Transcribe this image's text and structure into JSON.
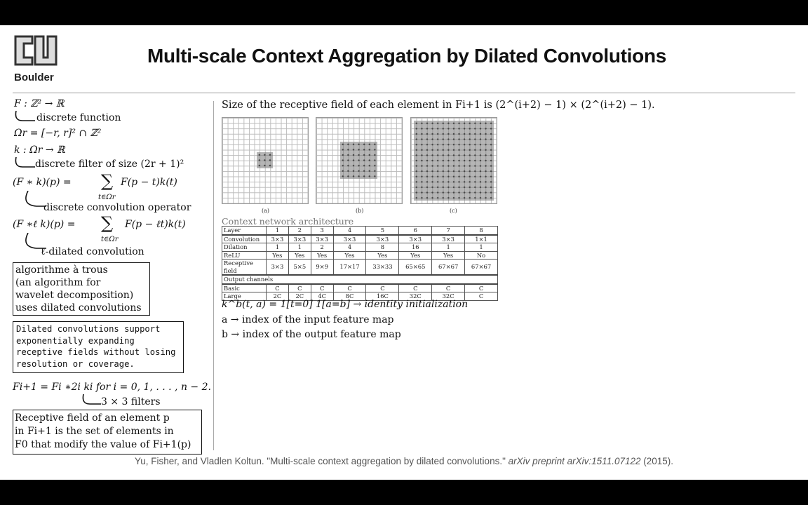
{
  "logo": {
    "institution": "Boulder"
  },
  "title": "Multi-scale Context Aggregation by Dilated Convolutions",
  "left": {
    "f_def": "F : ℤ² → ℝ",
    "f_note": "discrete function",
    "omega_def": "Ωr = [−r, r]² ∩ ℤ²",
    "k_def": "k : Ωr → ℝ",
    "k_note": "discrete filter of size (2r + 1)²",
    "conv_lhs": "(F ∗ k)(p) =",
    "conv_sum": "∑",
    "conv_sub": "t∈Ωr",
    "conv_rhs": "F(p − t)k(t)",
    "conv_note": "discrete convolution operator",
    "dconv_lhs": "(F ∗ℓ k)(p) =",
    "dconv_sum": "∑",
    "dconv_sub": "t∈Ωr",
    "dconv_rhs": "F(p − ℓt)k(t)",
    "dconv_note": "ℓ-dilated convolution",
    "atrous": [
      "algorithme à trous",
      "(an algorithm for",
      "wavelet decomposition)",
      "uses dilated convolutions"
    ],
    "support": [
      "Dilated convolutions support",
      "exponentially expanding",
      "receptive fields without losing",
      "resolution or coverage."
    ],
    "recur": "Fi+1 = Fi ∗2i ki   for i = 0, 1, . . . , n − 2.",
    "recur_note": "3 × 3 filters",
    "receptive": [
      "Receptive field of an element p",
      "in Fi+1 is the set of elements in",
      "F0 that modify the value of Fi+1(p)"
    ]
  },
  "right": {
    "size_line": "Size of the receptive field of each element in Fi+1 is (2^(i+2) − 1) × (2^(i+2) − 1).",
    "fig_captions": [
      "(a)",
      "(b)",
      "(c)"
    ],
    "ctx_title": "Context network architecture",
    "ctx_table": {
      "header": [
        "Layer",
        "1",
        "2",
        "3",
        "4",
        "5",
        "6",
        "7",
        "8"
      ],
      "rows": [
        [
          "Convolution",
          "3×3",
          "3×3",
          "3×3",
          "3×3",
          "3×3",
          "3×3",
          "3×3",
          "1×1"
        ],
        [
          "Dilation",
          "1",
          "1",
          "2",
          "4",
          "8",
          "16",
          "1",
          "1"
        ],
        [
          "ReLU",
          "Yes",
          "Yes",
          "Yes",
          "Yes",
          "Yes",
          "Yes",
          "Yes",
          "No"
        ],
        [
          "Receptive field",
          "3×3",
          "5×5",
          "9×9",
          "17×17",
          "33×33",
          "65×65",
          "67×67",
          "67×67"
        ]
      ],
      "output_channels_label": "Output channels",
      "channels": [
        [
          "Basic",
          "C",
          "C",
          "C",
          "C",
          "C",
          "C",
          "C",
          "C"
        ],
        [
          "Large",
          "2C",
          "2C",
          "4C",
          "8C",
          "16C",
          "32C",
          "32C",
          "C"
        ]
      ]
    },
    "init_line": "k^b(t, a) = 1[t=0] 1[a=b] → identity initialization",
    "a_line": "a → index of the input feature map",
    "b_line": "b → index of the output feature map"
  },
  "citation": {
    "authors": "Yu, Fisher, and Vladlen Koltun. \"Multi-scale context aggregation by dilated convolutions.\" ",
    "venue": "arXiv preprint arXiv:1511.07122",
    "year": " (2015)."
  }
}
